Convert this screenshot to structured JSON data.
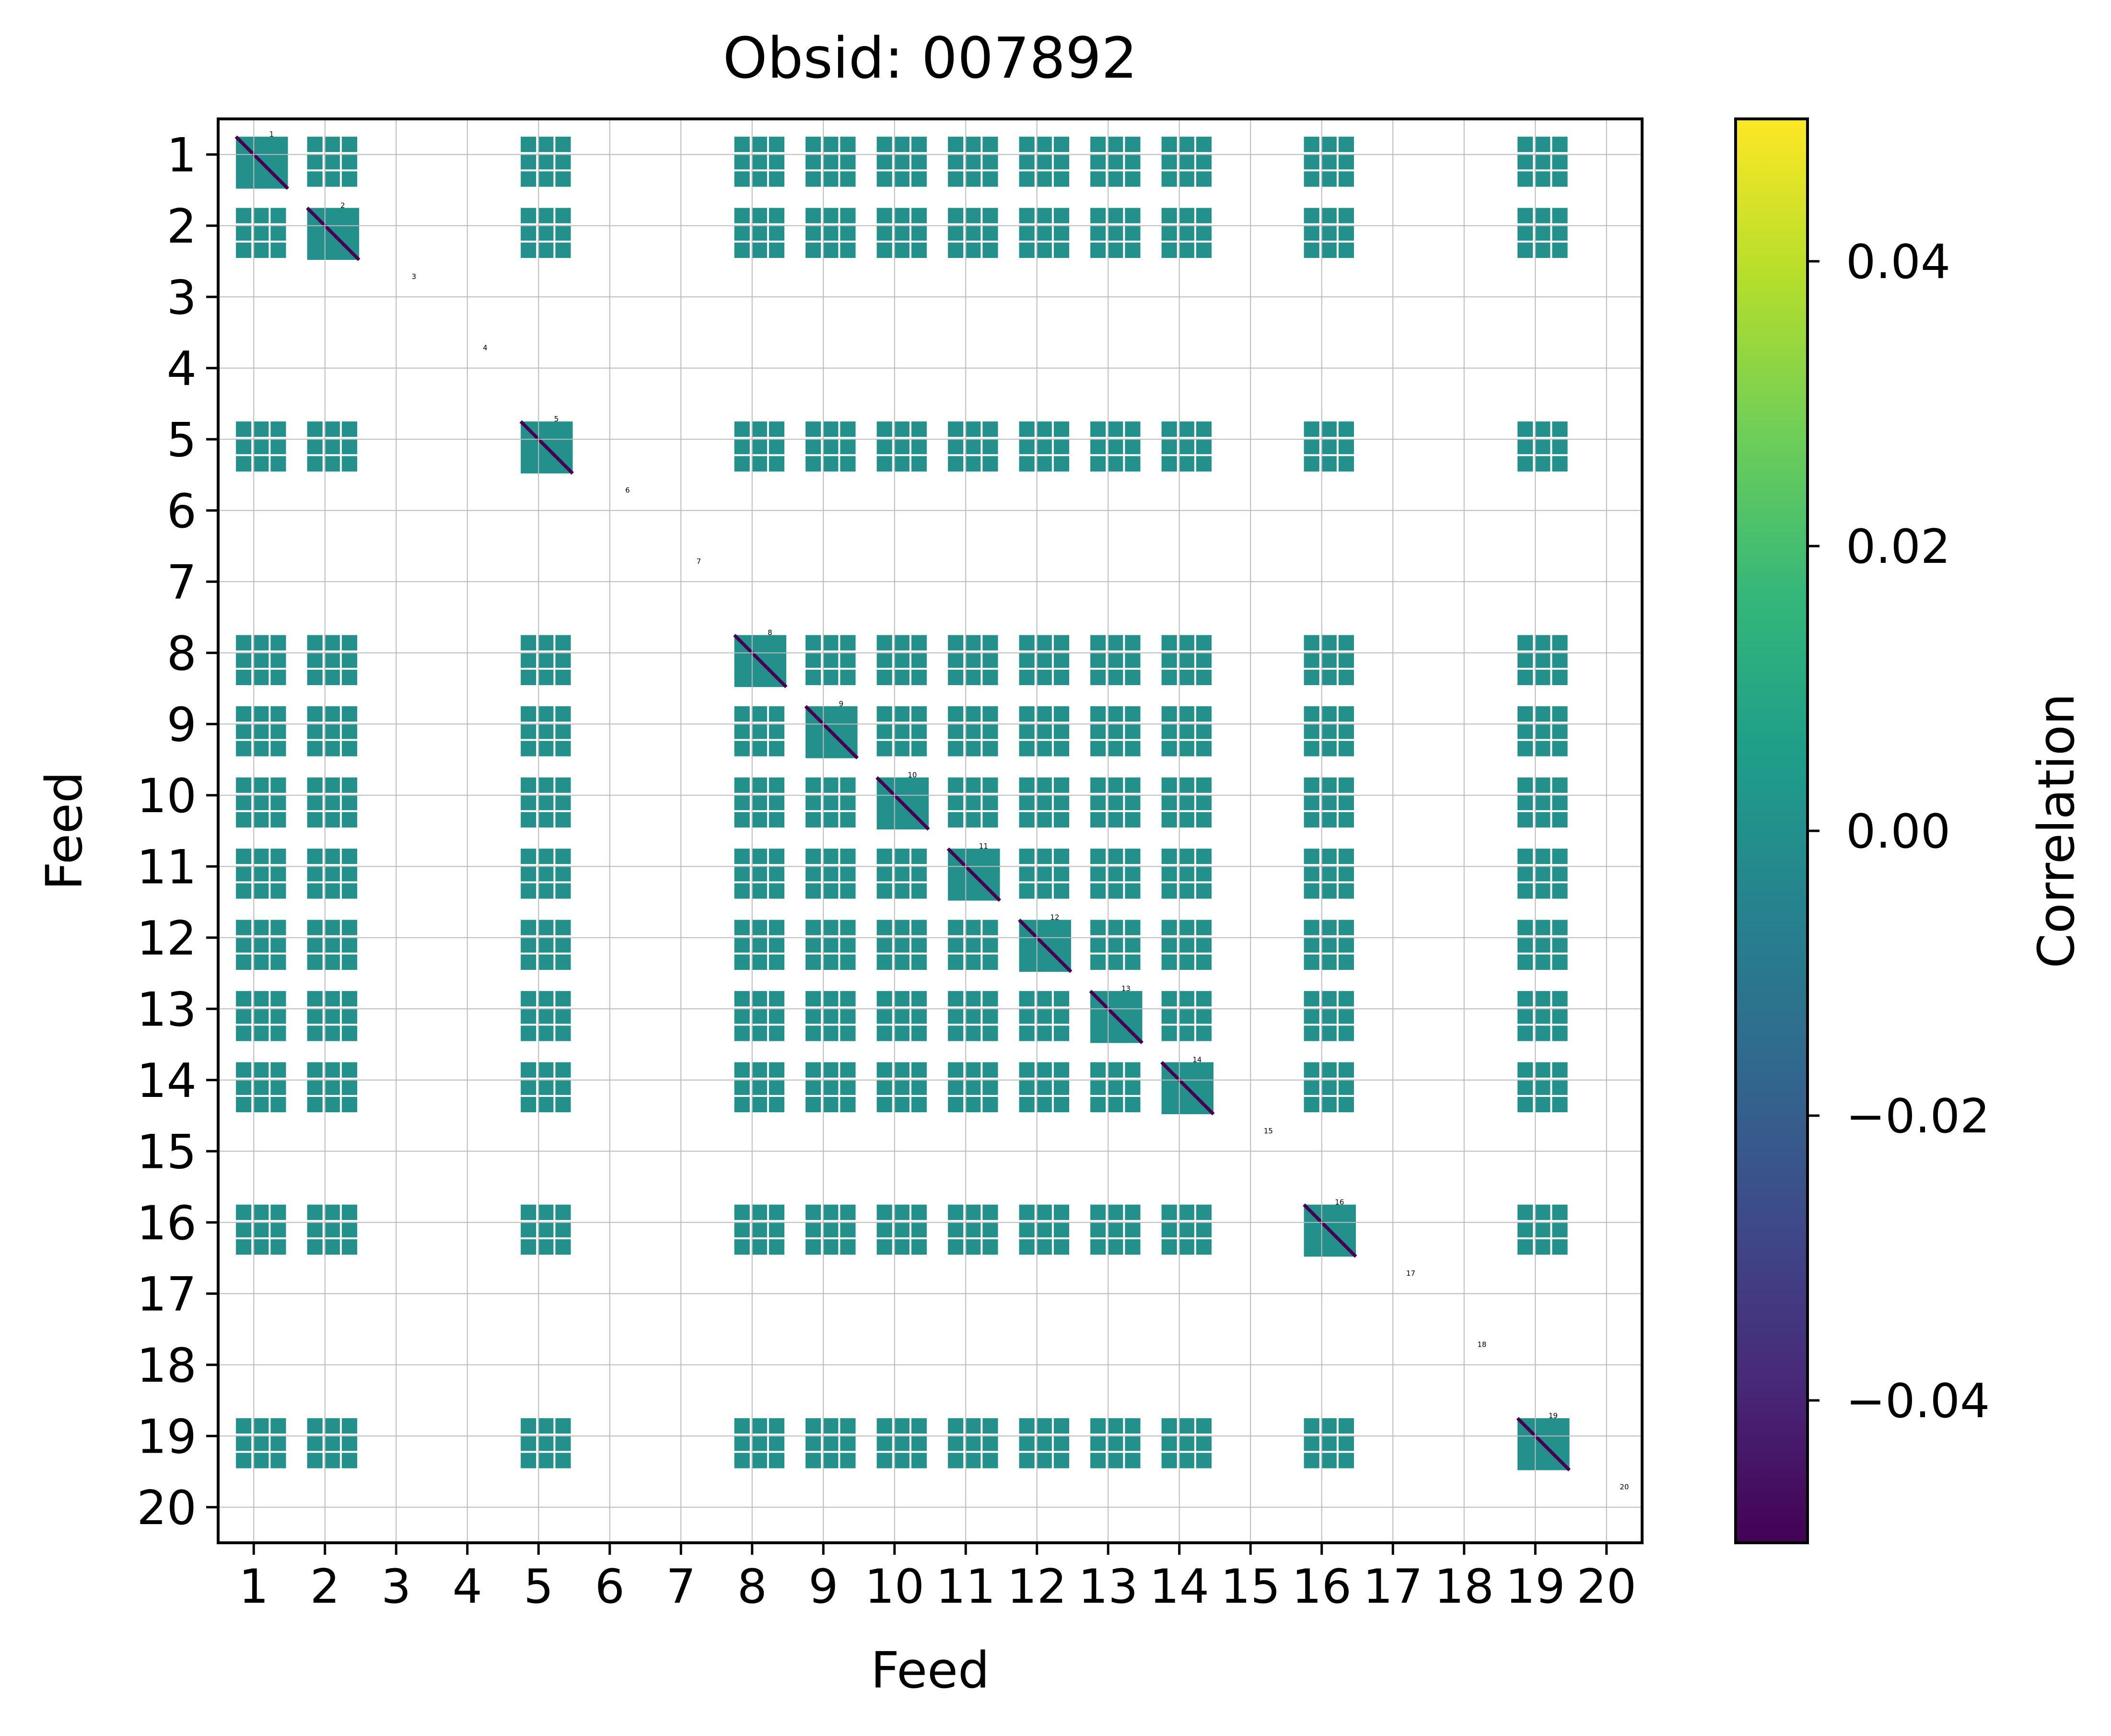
{
  "chart_data": {
    "type": "heatmap",
    "title": "Obsid: 007892",
    "xlabel": "Feed",
    "ylabel": "Feed",
    "feeds": [
      "1",
      "2",
      "3",
      "4",
      "5",
      "6",
      "7",
      "8",
      "9",
      "10",
      "11",
      "12",
      "13",
      "14",
      "15",
      "16",
      "17",
      "18",
      "19",
      "20"
    ],
    "active_feeds": [
      1,
      2,
      5,
      8,
      9,
      10,
      11,
      12,
      13,
      14,
      16,
      19
    ],
    "block_fill_levels": [
      0,
      0.25,
      0.5,
      0.75
    ],
    "cell_value": 0.0,
    "diagonal_value": -0.05,
    "colorbar": {
      "label": "Correlation",
      "vmin": -0.05,
      "vmax": 0.05,
      "ticks": [
        0.04,
        0.02,
        0.0,
        -0.02,
        -0.04
      ],
      "tick_labels": [
        "0.04",
        "0.02",
        "0.00",
        "−0.02",
        "−0.04"
      ],
      "colormap": [
        "#440154",
        "#482878",
        "#3e4989",
        "#31688e",
        "#26828e",
        "#1f9e89",
        "#35b779",
        "#6ece58",
        "#b5de2b",
        "#fde725"
      ]
    },
    "grid": true
  }
}
